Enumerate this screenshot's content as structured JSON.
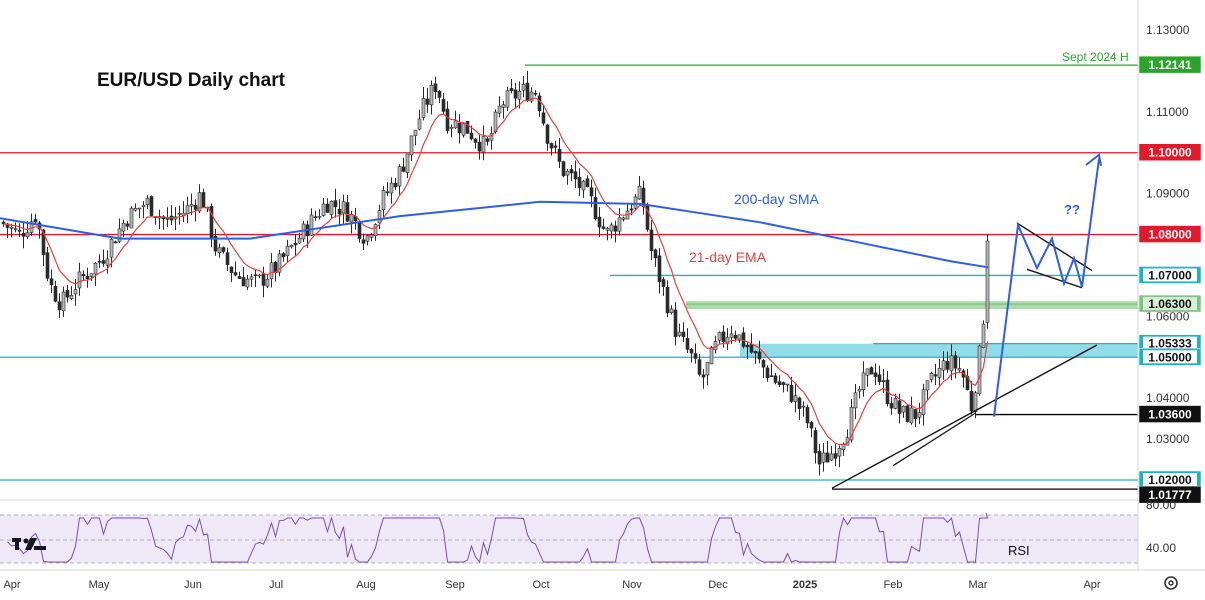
{
  "chart_data": {
    "type": "candlestick",
    "title": "EUR/USD Daily chart",
    "y_axis": {
      "ylim": [
        1.0125,
        1.1335
      ],
      "ticks": [
        "1.13000",
        "1.11000",
        "1.10000",
        "1.09000",
        "1.08000",
        "1.07000",
        "1.06000",
        "1.05000",
        "1.04000",
        "1.03000",
        "1.02000"
      ],
      "position": "right"
    },
    "x_axis": {
      "months": [
        "Apr",
        "May",
        "Jun",
        "Jul",
        "Aug",
        "Sep",
        "Oct",
        "Nov",
        "Dec",
        "2025",
        "Feb",
        "Mar",
        "Apr"
      ]
    },
    "ohlc_approx": {
      "monthly_closes": [
        {
          "month": "Apr",
          "close": 1.072
        },
        {
          "month": "May",
          "close": 1.085
        },
        {
          "month": "Jun",
          "close": 1.072
        },
        {
          "month": "Jul",
          "close": 1.083
        },
        {
          "month": "Aug",
          "close": 1.105
        },
        {
          "month": "Sep",
          "close": 1.1135
        },
        {
          "month": "Oct",
          "close": 1.082
        },
        {
          "month": "Nov",
          "close": 1.058
        },
        {
          "month": "Dec",
          "close": 1.04
        },
        {
          "month": "2025",
          "close": 1.037
        },
        {
          "month": "Feb",
          "close": 1.04
        },
        {
          "month": "Mar",
          "close": 1.081
        }
      ]
    },
    "indicators": [
      {
        "name": "200-day SMA",
        "color": "#2f5ee0"
      },
      {
        "name": "21-day EMA",
        "color": "#e8403a"
      }
    ],
    "levels": [
      {
        "label": "1.12141",
        "value": 1.12141,
        "color": "#2aa52a",
        "note": "Sept 2024 H"
      },
      {
        "label": "1.10000",
        "value": 1.1,
        "color": "#e0192b"
      },
      {
        "label": "1.08000",
        "value": 1.08,
        "color": "#e0192b"
      },
      {
        "label": "1.07000",
        "value": 1.07,
        "color": "#19b5c4"
      },
      {
        "label": "1.06300",
        "value": 1.063,
        "color": "#7dc47d"
      },
      {
        "label": "1.05333",
        "value": 1.05333,
        "color": "#19b5c4"
      },
      {
        "label": "1.05000",
        "value": 1.05,
        "color": "#19b5c4"
      },
      {
        "label": "1.03600",
        "value": 1.036,
        "color": "#000000"
      },
      {
        "label": "1.02000",
        "value": 1.02,
        "color": "#19b5c4"
      },
      {
        "label": "1.01777",
        "value": 1.01777,
        "color": "#000000"
      }
    ],
    "annotations": {
      "question": "??"
    },
    "rsi": {
      "label": "RSI",
      "ticks": [
        "80.00",
        "40.00"
      ],
      "color": "#7b4fb0"
    }
  }
}
